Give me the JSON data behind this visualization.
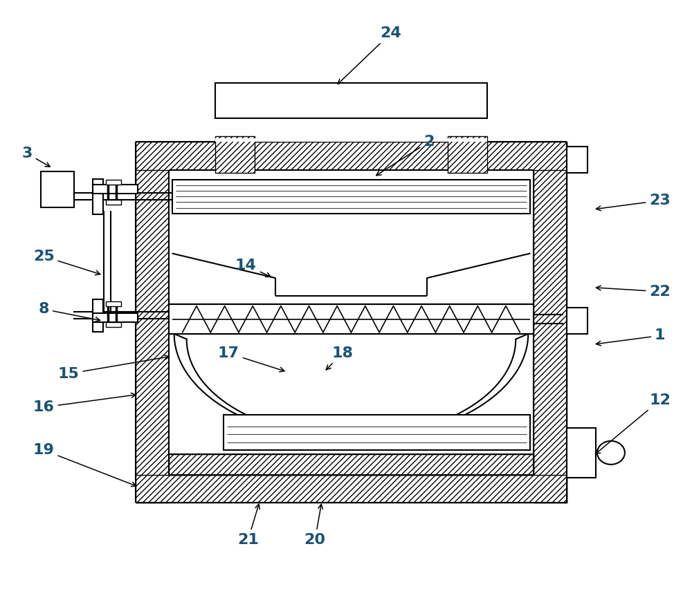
{
  "bg_color": "#ffffff",
  "line_color": "#000000",
  "label_color": "#1a5276",
  "label_fontsize": 16,
  "fig_width": 10.0,
  "fig_height": 8.52,
  "dpi": 100,
  "label_defs": {
    "24": [
      0.565,
      0.945,
      0.485,
      0.855
    ],
    "2": [
      0.62,
      0.76,
      0.54,
      0.7
    ],
    "3": [
      0.038,
      0.74,
      0.075,
      0.715
    ],
    "25": [
      0.062,
      0.565,
      0.148,
      0.533
    ],
    "8": [
      0.062,
      0.475,
      0.148,
      0.455
    ],
    "15": [
      0.098,
      0.365,
      0.248,
      0.395
    ],
    "16": [
      0.062,
      0.308,
      0.2,
      0.33
    ],
    "14": [
      0.355,
      0.55,
      0.395,
      0.528
    ],
    "17": [
      0.33,
      0.4,
      0.415,
      0.368
    ],
    "18": [
      0.495,
      0.4,
      0.468,
      0.368
    ],
    "19": [
      0.062,
      0.235,
      0.2,
      0.172
    ],
    "20": [
      0.455,
      0.082,
      0.465,
      0.148
    ],
    "21": [
      0.358,
      0.082,
      0.375,
      0.148
    ],
    "22": [
      0.955,
      0.505,
      0.858,
      0.512
    ],
    "23": [
      0.955,
      0.66,
      0.858,
      0.645
    ],
    "1": [
      0.955,
      0.43,
      0.858,
      0.415
    ],
    "12": [
      0.955,
      0.32,
      0.858,
      0.225
    ]
  }
}
